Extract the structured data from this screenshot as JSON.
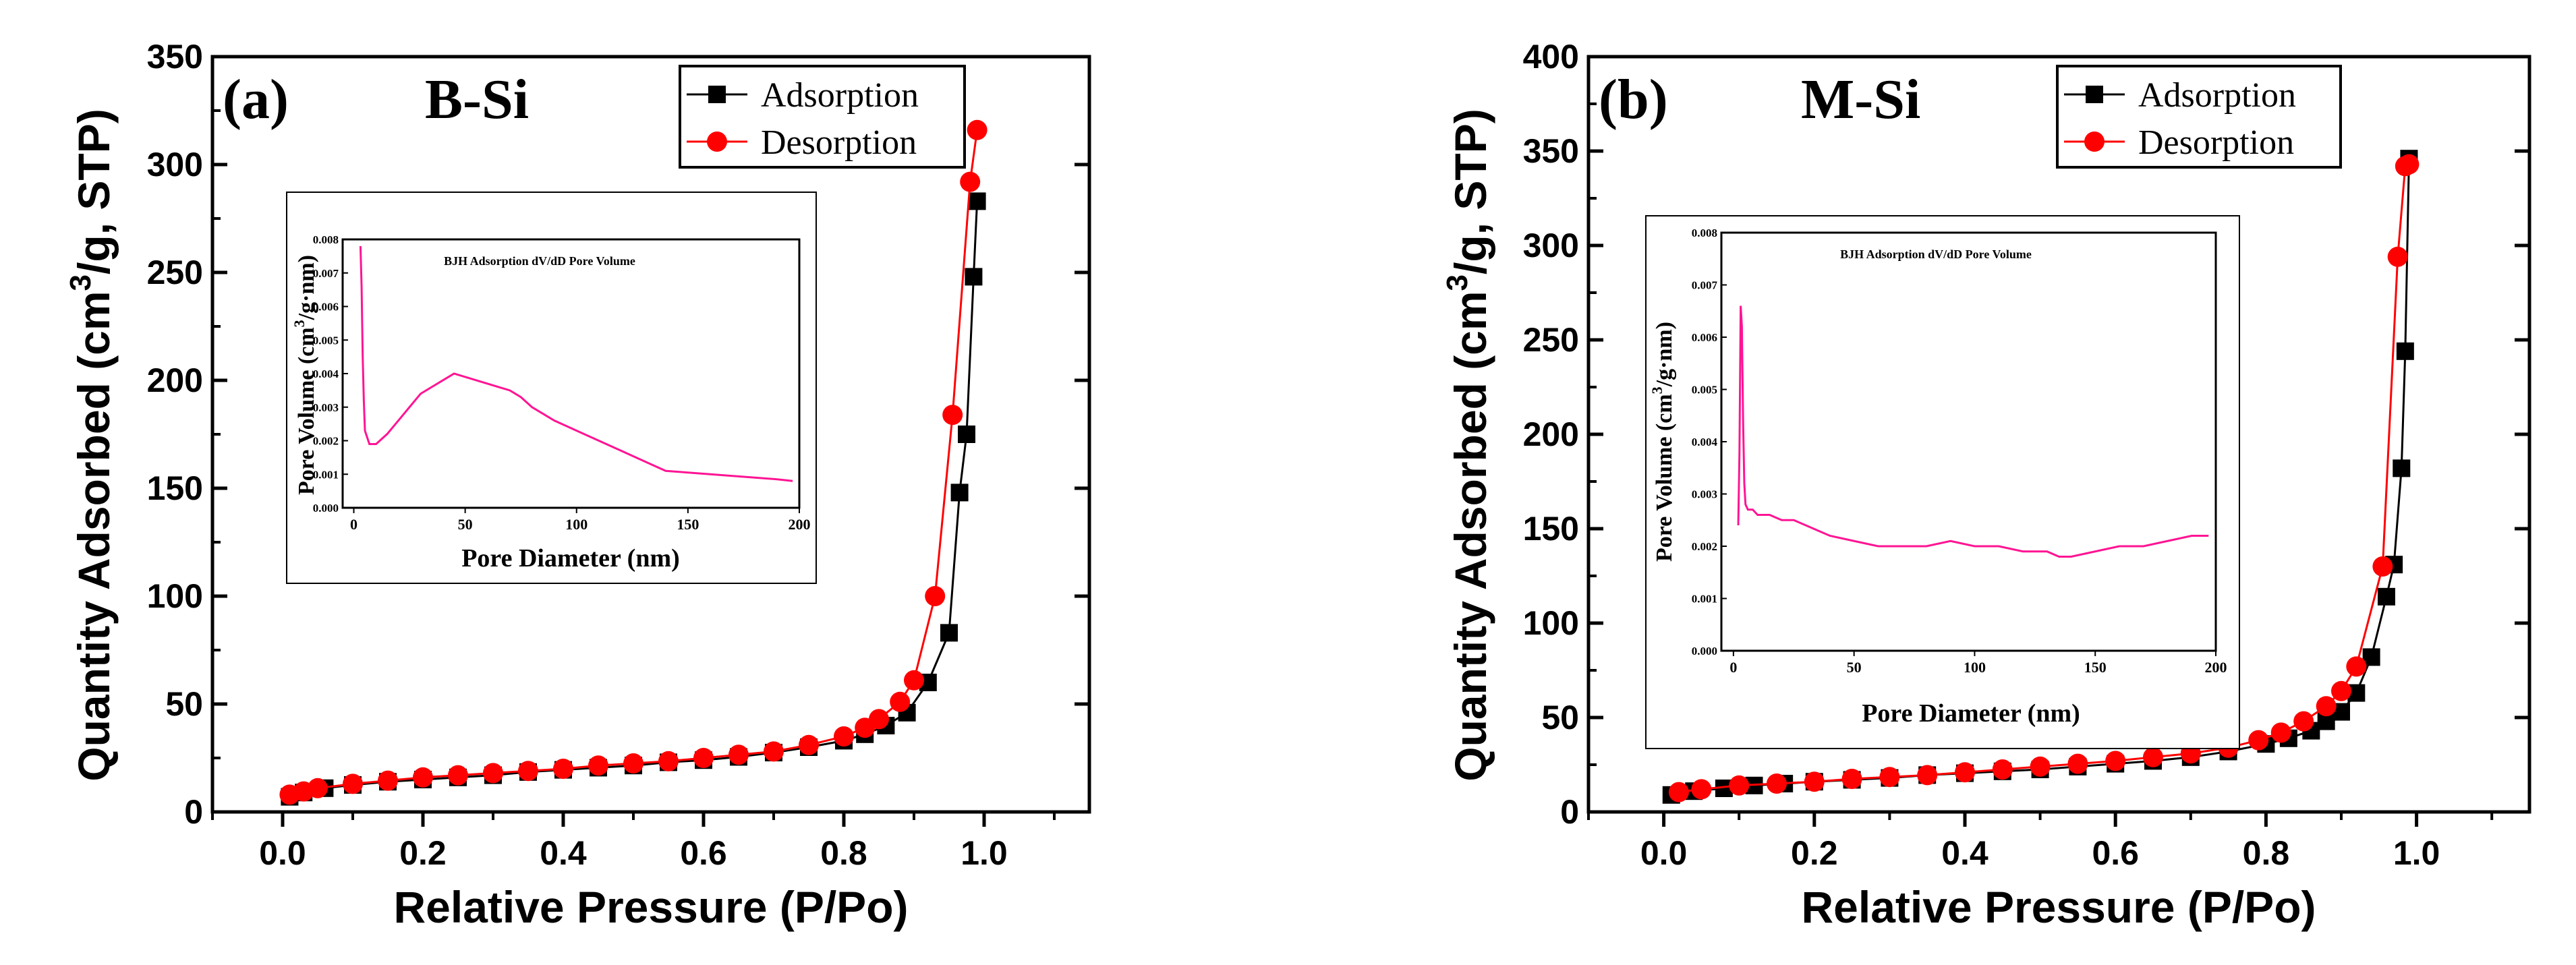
{
  "chart_data": [
    {
      "type": "line",
      "panel_label": "(a)",
      "sample": "B-Si",
      "xlabel": "Relative Pressure (P/Po)",
      "ylabel_parts": [
        "Quantity Adsorbed (cm",
        "3",
        "/g, STP)"
      ],
      "xlim": [
        -0.1,
        1.15
      ],
      "ylim": [
        0,
        350
      ],
      "xticks": [
        0.0,
        0.2,
        0.4,
        0.6,
        0.8,
        1.0
      ],
      "xtick_labels": [
        "0.0",
        "0.2",
        "0.4",
        "0.6",
        "0.8",
        "1.0"
      ],
      "yticks": [
        0,
        50,
        100,
        150,
        200,
        250,
        300,
        350
      ],
      "ytick_labels": [
        "0",
        "50",
        "100",
        "150",
        "200",
        "250",
        "300",
        "350"
      ],
      "legend": {
        "position": "top-right",
        "entries": [
          "Adsorption",
          "Desorption"
        ]
      },
      "series": [
        {
          "name": "Adsorption",
          "color": "#000000",
          "marker": "square",
          "x": [
            0.01,
            0.03,
            0.06,
            0.1,
            0.15,
            0.2,
            0.25,
            0.3,
            0.35,
            0.4,
            0.45,
            0.5,
            0.55,
            0.6,
            0.65,
            0.7,
            0.75,
            0.8,
            0.83,
            0.86,
            0.89,
            0.92,
            0.95,
            0.965,
            0.975,
            0.985,
            0.99
          ],
          "y": [
            7,
            9,
            11,
            12.5,
            14,
            15,
            16,
            17,
            18.5,
            19.5,
            20.5,
            21.5,
            23,
            24,
            25.5,
            27.5,
            30,
            33,
            36,
            40,
            46,
            60,
            83,
            148,
            175,
            248,
            283
          ]
        },
        {
          "name": "Desorption",
          "color": "#ff0000",
          "marker": "circle",
          "x": [
            0.99,
            0.98,
            0.955,
            0.93,
            0.9,
            0.88,
            0.85,
            0.83,
            0.8,
            0.75,
            0.7,
            0.65,
            0.6,
            0.55,
            0.5,
            0.45,
            0.4,
            0.35,
            0.3,
            0.25,
            0.2,
            0.15,
            0.1,
            0.05,
            0.03,
            0.01
          ],
          "y": [
            316,
            292,
            184,
            100,
            61,
            51,
            43,
            39,
            35,
            31,
            28,
            26.5,
            25,
            23.5,
            22.5,
            21.5,
            20,
            19,
            18,
            17,
            16,
            14.5,
            13,
            11,
            9.5,
            8
          ]
        }
      ],
      "inset": {
        "title": "BJH Adsorption dV/dD Pore Volume",
        "xlabel": "Pore Diameter (nm)",
        "ylabel_parts": [
          "Pore Volume (cm",
          "3",
          "/g·nm)"
        ],
        "xlim": [
          -5,
          200
        ],
        "ylim": [
          0,
          0.008
        ],
        "xticks": [
          0,
          50,
          100,
          150,
          200
        ],
        "xtick_labels": [
          "0",
          "50",
          "100",
          "150",
          "200"
        ],
        "yticks": [
          0,
          0.001,
          0.002,
          0.003,
          0.004,
          0.005,
          0.006,
          0.007,
          0.008
        ],
        "ytick_labels": [
          "0.000",
          "0.001",
          "0.002",
          "0.003",
          "0.004",
          "0.005",
          "0.006",
          "0.007",
          "0.008"
        ],
        "series": {
          "name": "Pore Volume",
          "color": "#ff1493",
          "x": [
            3,
            3.5,
            4,
            4.5,
            5,
            7,
            10,
            15,
            20,
            25,
            30,
            35,
            40,
            45,
            50,
            55,
            60,
            65,
            70,
            75,
            80,
            85,
            90,
            100,
            110,
            120,
            130,
            140,
            150,
            160,
            170,
            180,
            190,
            197
          ],
          "y": [
            0.0078,
            0.0066,
            0.0045,
            0.0032,
            0.0023,
            0.0019,
            0.0019,
            0.0022,
            0.0026,
            0.003,
            0.0034,
            0.0036,
            0.0038,
            0.004,
            0.0039,
            0.0038,
            0.0037,
            0.0036,
            0.0035,
            0.0033,
            0.003,
            0.0028,
            0.0026,
            0.0023,
            0.002,
            0.0017,
            0.0014,
            0.0011,
            0.00105,
            0.001,
            0.00095,
            0.0009,
            0.00085,
            0.0008
          ]
        }
      }
    },
    {
      "type": "line",
      "panel_label": "(b)",
      "sample": "M-Si",
      "xlabel": "Relative Pressure (P/Po)",
      "ylabel_parts": [
        "Quantity Adsorbed (cm",
        "3",
        "/g, STP)"
      ],
      "xlim": [
        -0.1,
        1.15
      ],
      "ylim": [
        0,
        400
      ],
      "xticks": [
        0.0,
        0.2,
        0.4,
        0.6,
        0.8,
        1.0
      ],
      "xtick_labels": [
        "0.0",
        "0.2",
        "0.4",
        "0.6",
        "0.8",
        "1.0"
      ],
      "yticks": [
        0,
        50,
        100,
        150,
        200,
        250,
        300,
        350,
        400
      ],
      "ytick_labels": [
        "0",
        "50",
        "100",
        "150",
        "200",
        "250",
        "300",
        "350",
        "400"
      ],
      "legend": {
        "position": "top-right",
        "entries": [
          "Adsorption",
          "Desorption"
        ]
      },
      "series": [
        {
          "name": "Adsorption",
          "color": "#000000",
          "marker": "square",
          "x": [
            0.01,
            0.04,
            0.08,
            0.12,
            0.16,
            0.2,
            0.25,
            0.3,
            0.35,
            0.4,
            0.45,
            0.5,
            0.55,
            0.6,
            0.65,
            0.7,
            0.75,
            0.8,
            0.83,
            0.86,
            0.88,
            0.9,
            0.92,
            0.94,
            0.96,
            0.97,
            0.98,
            0.985,
            0.99
          ],
          "y": [
            9,
            11,
            12.5,
            14,
            15,
            16,
            17,
            18,
            19.5,
            20.5,
            21.5,
            22.5,
            24,
            25.5,
            27,
            29,
            32,
            36,
            39,
            43,
            48,
            53,
            63,
            82,
            114,
            131,
            182,
            244,
            346
          ]
        },
        {
          "name": "Desorption",
          "color": "#ff0000",
          "marker": "circle",
          "x": [
            0.99,
            0.985,
            0.975,
            0.955,
            0.92,
            0.9,
            0.88,
            0.85,
            0.82,
            0.79,
            0.75,
            0.7,
            0.65,
            0.6,
            0.55,
            0.5,
            0.45,
            0.4,
            0.35,
            0.3,
            0.25,
            0.2,
            0.15,
            0.1,
            0.05,
            0.02
          ],
          "y": [
            343,
            342,
            294,
            130,
            77,
            64,
            56,
            48,
            42,
            38,
            34,
            31,
            29,
            27,
            25.5,
            24,
            22.5,
            21,
            19.5,
            18.5,
            17.5,
            16,
            15,
            14,
            12,
            10.5
          ]
        }
      ],
      "inset": {
        "title": "BJH Adsorption dV/dD Pore Volume",
        "xlabel": "Pore Diameter (nm)",
        "ylabel_parts": [
          "Pore Volume (cm",
          "3",
          "/g·nm)"
        ],
        "xlim": [
          -5,
          200
        ],
        "ylim": [
          0,
          0.008
        ],
        "xticks": [
          0,
          50,
          100,
          150,
          200
        ],
        "xtick_labels": [
          "0",
          "50",
          "100",
          "150",
          "200"
        ],
        "yticks": [
          0,
          0.001,
          0.002,
          0.003,
          0.004,
          0.005,
          0.006,
          0.007,
          0.008
        ],
        "ytick_labels": [
          "0.000",
          "0.001",
          "0.002",
          "0.003",
          "0.004",
          "0.005",
          "0.006",
          "0.007",
          "0.008"
        ],
        "series": {
          "name": "Pore Volume",
          "color": "#ff1493",
          "x": [
            2,
            2.5,
            3,
            3.5,
            4,
            4.5,
            5,
            6,
            8,
            10,
            15,
            20,
            25,
            30,
            35,
            40,
            50,
            60,
            70,
            80,
            90,
            100,
            110,
            120,
            130,
            135,
            140,
            150,
            160,
            170,
            180,
            190,
            197
          ],
          "y": [
            0.0024,
            0.0038,
            0.0066,
            0.0062,
            0.0044,
            0.0032,
            0.0028,
            0.0027,
            0.0027,
            0.0026,
            0.0026,
            0.0025,
            0.0025,
            0.0024,
            0.0023,
            0.0022,
            0.0021,
            0.002,
            0.002,
            0.002,
            0.0021,
            0.002,
            0.002,
            0.0019,
            0.0019,
            0.0018,
            0.0018,
            0.0019,
            0.002,
            0.002,
            0.0021,
            0.0022,
            0.0022
          ]
        }
      }
    }
  ]
}
